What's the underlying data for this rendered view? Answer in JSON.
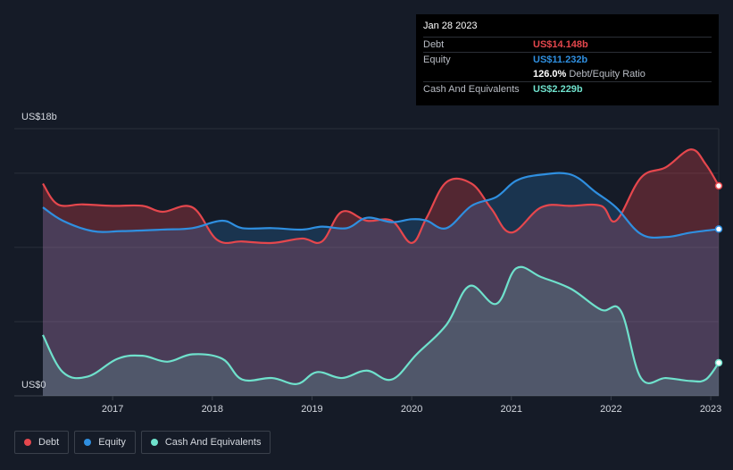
{
  "tooltip": {
    "date": "Jan 28 2023",
    "debt_label": "Debt",
    "debt_value": "US$14.148b",
    "equity_label": "Equity",
    "equity_value": "US$11.232b",
    "ratio_value": "126.0%",
    "ratio_label": "Debt/Equity Ratio",
    "cash_label": "Cash And Equivalents",
    "cash_value": "US$2.229b"
  },
  "legend": {
    "debt": "Debt",
    "equity": "Equity",
    "cash": "Cash And Equivalents"
  },
  "colors": {
    "debt": "#e5474d",
    "equity": "#2f8fe0",
    "cash": "#6fe1cc",
    "background": "#151b27"
  },
  "chart_data": {
    "type": "area",
    "ylabel_top": "US$18b",
    "ylabel_bottom": "US$0",
    "ylim": [
      0,
      18
    ],
    "xlim": [
      2016.3,
      2023.08
    ],
    "xticks": [
      "2017",
      "2018",
      "2019",
      "2020",
      "2021",
      "2022",
      "2023"
    ],
    "grid": true,
    "legend_position": "bottom-left",
    "series": [
      {
        "name": "Debt",
        "x": [
          2016.3,
          2016.45,
          2016.7,
          2017.0,
          2017.3,
          2017.5,
          2017.8,
          2018.05,
          2018.3,
          2018.6,
          2018.9,
          2019.1,
          2019.3,
          2019.55,
          2019.8,
          2020.0,
          2020.15,
          2020.35,
          2020.6,
          2020.8,
          2021.0,
          2021.3,
          2021.6,
          2021.9,
          2022.05,
          2022.3,
          2022.55,
          2022.8,
          2022.95,
          2023.08
        ],
        "values": [
          14.3,
          12.9,
          12.9,
          12.8,
          12.8,
          12.4,
          12.7,
          10.5,
          10.4,
          10.3,
          10.6,
          10.4,
          12.4,
          11.8,
          11.8,
          10.3,
          12.0,
          14.4,
          14.3,
          12.6,
          11.0,
          12.7,
          12.8,
          12.8,
          11.8,
          14.7,
          15.4,
          16.6,
          15.6,
          14.148
        ]
      },
      {
        "name": "Equity",
        "x": [
          2016.3,
          2016.5,
          2016.8,
          2017.1,
          2017.5,
          2017.8,
          2018.1,
          2018.3,
          2018.6,
          2018.9,
          2019.1,
          2019.35,
          2019.55,
          2019.8,
          2020.0,
          2020.15,
          2020.35,
          2020.6,
          2020.85,
          2021.05,
          2021.3,
          2021.6,
          2021.85,
          2022.05,
          2022.3,
          2022.55,
          2022.8,
          2023.08
        ],
        "values": [
          12.7,
          11.8,
          11.1,
          11.1,
          11.2,
          11.3,
          11.8,
          11.3,
          11.3,
          11.2,
          11.4,
          11.3,
          12.0,
          11.7,
          11.9,
          11.8,
          11.3,
          12.8,
          13.4,
          14.5,
          14.9,
          14.9,
          13.7,
          12.7,
          10.9,
          10.7,
          11.0,
          11.232
        ]
      },
      {
        "name": "Cash And Equivalents",
        "x": [
          2016.3,
          2016.5,
          2016.75,
          2017.05,
          2017.3,
          2017.55,
          2017.8,
          2018.1,
          2018.3,
          2018.6,
          2018.85,
          2019.05,
          2019.3,
          2019.55,
          2019.8,
          2020.05,
          2020.35,
          2020.58,
          2020.85,
          2021.05,
          2021.3,
          2021.6,
          2021.9,
          2022.1,
          2022.3,
          2022.55,
          2022.8,
          2022.95,
          2023.08
        ],
        "values": [
          4.1,
          1.6,
          1.3,
          2.5,
          2.7,
          2.3,
          2.8,
          2.5,
          1.1,
          1.2,
          0.8,
          1.6,
          1.2,
          1.7,
          1.1,
          2.8,
          4.8,
          7.4,
          6.2,
          8.6,
          8.0,
          7.2,
          5.8,
          5.7,
          1.2,
          1.2,
          1.0,
          1.1,
          2.229
        ]
      }
    ]
  }
}
